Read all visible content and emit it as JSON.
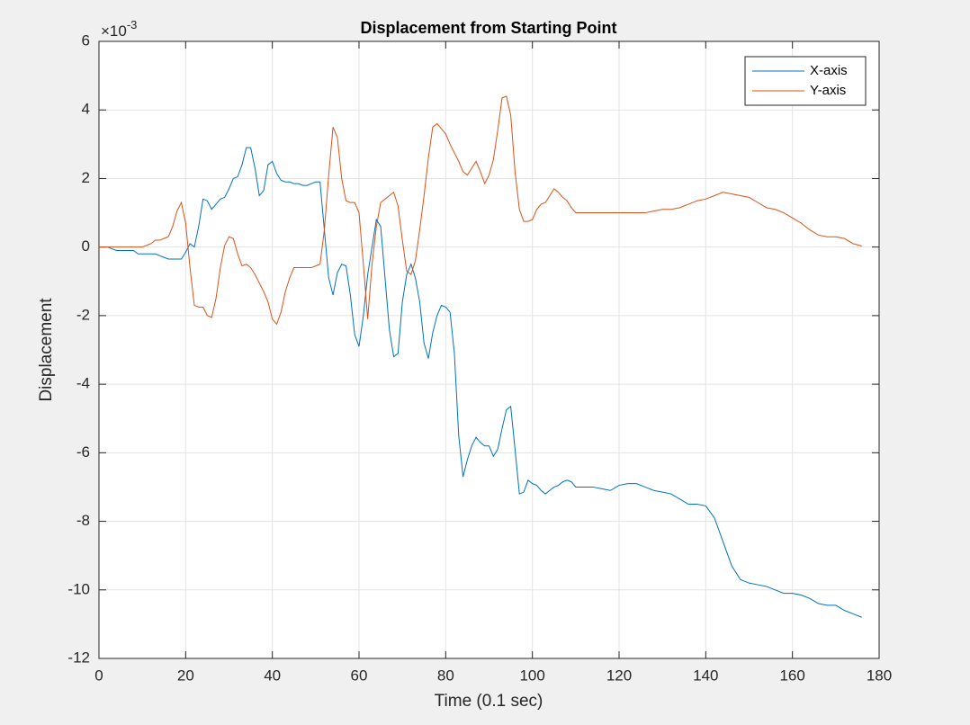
{
  "chart_data": {
    "type": "line",
    "title": "Displacement from Starting Point",
    "xlabel": "Time (0.1 sec)",
    "ylabel": "Displacement",
    "y_exponent": {
      "base": "×10",
      "power": "-3"
    },
    "xlim": [
      0,
      180
    ],
    "xticks": [
      0,
      20,
      40,
      60,
      80,
      100,
      120,
      140,
      160,
      180
    ],
    "ylim": [
      -12,
      6
    ],
    "yticks": [
      -12,
      -10,
      -8,
      -6,
      -4,
      -2,
      0,
      2,
      4,
      6
    ],
    "grid": true,
    "legend": "top-right",
    "x": [
      0,
      1,
      2,
      3,
      4,
      5,
      6,
      7,
      8,
      9,
      10,
      11,
      12,
      13,
      14,
      15,
      16,
      17,
      18,
      19,
      20,
      21,
      22,
      23,
      24,
      25,
      26,
      27,
      28,
      29,
      30,
      31,
      32,
      33,
      34,
      35,
      36,
      37,
      38,
      39,
      40,
      41,
      42,
      43,
      44,
      45,
      46,
      47,
      48,
      49,
      50,
      51,
      52,
      53,
      54,
      55,
      56,
      57,
      58,
      59,
      60,
      61,
      62,
      63,
      64,
      65,
      66,
      67,
      68,
      69,
      70,
      71,
      72,
      73,
      74,
      75,
      76,
      77,
      78,
      79,
      80,
      81,
      82,
      83,
      84,
      85,
      86,
      87,
      88,
      89,
      90,
      91,
      92,
      93,
      94,
      95,
      96,
      97,
      98,
      99,
      100,
      101,
      102,
      103,
      104,
      105,
      106,
      107,
      108,
      109,
      110,
      112,
      114,
      116,
      118,
      120,
      122,
      124,
      126,
      128,
      130,
      132,
      134,
      136,
      138,
      140,
      142,
      144,
      146,
      148,
      150,
      152,
      154,
      156,
      158,
      160,
      162,
      164,
      166,
      168,
      170,
      172,
      174,
      176
    ],
    "series": [
      {
        "name": "X-axis",
        "color": "#0072bd",
        "values": [
          0,
          0,
          0,
          -0.05,
          -0.1,
          -0.1,
          -0.1,
          -0.1,
          -0.1,
          -0.2,
          -0.2,
          -0.2,
          -0.2,
          -0.2,
          -0.25,
          -0.3,
          -0.35,
          -0.35,
          -0.35,
          -0.35,
          -0.15,
          0.1,
          0,
          0.6,
          1.4,
          1.35,
          1.1,
          1.25,
          1.4,
          1.45,
          1.7,
          2,
          2.05,
          2.4,
          2.9,
          2.9,
          2.3,
          1.5,
          1.65,
          2.4,
          2.5,
          2.15,
          1.95,
          1.9,
          1.9,
          1.85,
          1.85,
          1.8,
          1.8,
          1.85,
          1.9,
          1.9,
          0.5,
          -0.9,
          -1.4,
          -0.75,
          -0.5,
          -0.55,
          -1.4,
          -2.55,
          -2.9,
          -2,
          -0.8,
          0,
          0.8,
          0.6,
          -0.9,
          -2.4,
          -3.2,
          -3.1,
          -1.6,
          -0.8,
          -0.5,
          -0.9,
          -1.6,
          -2.8,
          -3.25,
          -2.5,
          -2,
          -1.7,
          -1.75,
          -1.9,
          -3.1,
          -5.5,
          -6.7,
          -6.2,
          -5.8,
          -5.55,
          -5.7,
          -5.8,
          -5.8,
          -6.1,
          -5.9,
          -5.3,
          -4.75,
          -4.65,
          -5.9,
          -7.2,
          -7.15,
          -6.8,
          -6.9,
          -6.95,
          -7.1,
          -7.2,
          -7.1,
          -7,
          -6.95,
          -6.85,
          -6.8,
          -6.85,
          -7,
          -7,
          -7,
          -7.05,
          -7.1,
          -6.95,
          -6.9,
          -6.9,
          -7,
          -7.1,
          -7.15,
          -7.2,
          -7.35,
          -7.5,
          -7.5,
          -7.55,
          -7.9,
          -8.6,
          -9.3,
          -9.7,
          -9.8,
          -9.85,
          -9.9,
          -10,
          -10.1,
          -10.1,
          -10.15,
          -10.25,
          -10.4,
          -10.45,
          -10.45,
          -10.6,
          -10.7,
          -10.8
        ]
      },
      {
        "name": "Y-axis",
        "color": "#d95319",
        "values": [
          0,
          0,
          0,
          0,
          0,
          0,
          0,
          0,
          0,
          0,
          0,
          0.05,
          0.1,
          0.2,
          0.2,
          0.25,
          0.3,
          0.6,
          1.05,
          1.3,
          0.7,
          -0.6,
          -1.7,
          -1.75,
          -1.75,
          -2,
          -2.05,
          -1.5,
          -0.6,
          0.05,
          0.3,
          0.25,
          -0.2,
          -0.55,
          -0.5,
          -0.6,
          -0.8,
          -1.05,
          -1.3,
          -1.6,
          -2.1,
          -2.25,
          -1.9,
          -1.3,
          -0.9,
          -0.6,
          -0.6,
          -0.6,
          -0.6,
          -0.6,
          -0.55,
          -0.5,
          0.5,
          2.1,
          3.5,
          3.2,
          2,
          1.35,
          1.3,
          1.3,
          1,
          -0.5,
          -2.1,
          -0.5,
          0.6,
          1.3,
          1.4,
          1.5,
          1.6,
          1.2,
          0.2,
          -0.7,
          -0.8,
          -0.4,
          0.5,
          1.5,
          2.6,
          3.5,
          3.6,
          3.45,
          3.3,
          3,
          2.75,
          2.5,
          2.2,
          2.1,
          2.3,
          2.5,
          2.2,
          1.85,
          2.1,
          2.55,
          3.4,
          4.35,
          4.4,
          3.85,
          2.2,
          1.1,
          0.75,
          0.75,
          0.8,
          1.1,
          1.25,
          1.3,
          1.5,
          1.7,
          1.6,
          1.45,
          1.35,
          1.15,
          1,
          1,
          1,
          1,
          1,
          1,
          1,
          1,
          1,
          1.05,
          1.1,
          1.1,
          1.15,
          1.25,
          1.35,
          1.4,
          1.5,
          1.6,
          1.55,
          1.5,
          1.45,
          1.3,
          1.15,
          1.1,
          1,
          0.85,
          0.7,
          0.5,
          0.35,
          0.3,
          0.3,
          0.25,
          0.1,
          0.03
        ]
      }
    ]
  }
}
